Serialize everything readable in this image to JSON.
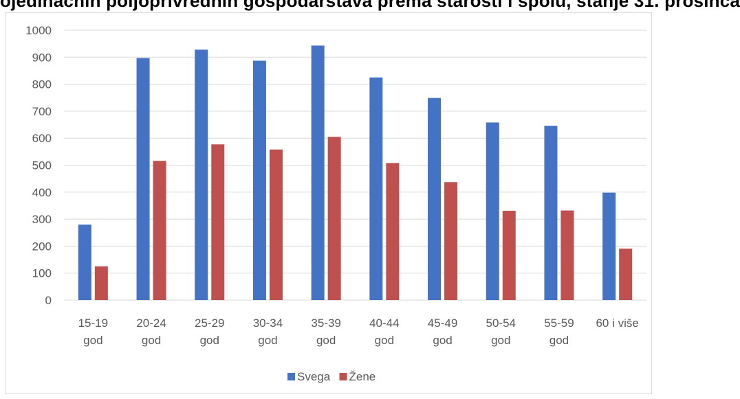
{
  "page": {
    "cropped_title": "ojedinačnih poljoprivrednih gospodarstava prema starosti i spolu, stanje 31. prosinca"
  },
  "chart_data": {
    "type": "bar",
    "categories": [
      [
        "15-19",
        "god"
      ],
      [
        "20-24",
        "god"
      ],
      [
        "25-29",
        "god"
      ],
      [
        "30-34",
        "god"
      ],
      [
        "35-39",
        "god"
      ],
      [
        "40-44",
        "god"
      ],
      [
        "45-49",
        "god"
      ],
      [
        "50-54",
        "god"
      ],
      [
        "55-59",
        "god"
      ],
      [
        "60 i više"
      ]
    ],
    "series": [
      {
        "name": "Svega",
        "color": "#4472C4",
        "values": [
          280,
          897,
          928,
          887,
          943,
          825,
          749,
          658,
          646,
          398
        ]
      },
      {
        "name": "Žene",
        "color": "#C0504D",
        "values": [
          125,
          516,
          577,
          558,
          605,
          508,
          437,
          331,
          332,
          191
        ]
      }
    ],
    "ylim": [
      0,
      1000
    ],
    "yticks": [
      0,
      100,
      200,
      300,
      400,
      500,
      600,
      700,
      800,
      900,
      1000
    ],
    "grid": true,
    "legend_position": "bottom",
    "colors": {
      "gridline": "#d9d9d9",
      "text": "#595959"
    }
  }
}
